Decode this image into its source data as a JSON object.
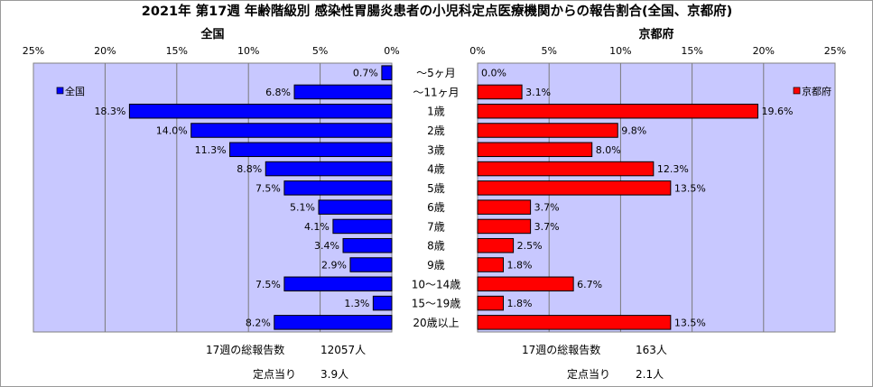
{
  "chart_data": {
    "type": "bar",
    "title": "2021年 第17週 年齢階級別 感染性胃腸炎患者の小児科定点医療機関からの報告割合(全国、京都府)",
    "categories": [
      "～5ヶ月",
      "～11ヶ月",
      "1歳",
      "2歳",
      "3歳",
      "4歳",
      "5歳",
      "6歳",
      "7歳",
      "8歳",
      "9歳",
      "10～14歳",
      "15～19歳",
      "20歳以上"
    ],
    "xlim": [
      0,
      25
    ],
    "ticks": [
      0,
      5,
      10,
      15,
      20,
      25
    ],
    "tick_labels": [
      "0%",
      "5%",
      "10%",
      "15%",
      "20%",
      "25%"
    ],
    "grid": true,
    "series": [
      {
        "name": "全国",
        "panel_title": "全国",
        "color": "#0000ff",
        "legend_position": "top-left",
        "values": [
          0.7,
          6.8,
          18.3,
          14.0,
          11.3,
          8.8,
          7.5,
          5.1,
          4.1,
          3.4,
          2.9,
          7.5,
          1.3,
          8.2
        ],
        "labels": [
          "0.7%",
          "6.8%",
          "18.3%",
          "14.0%",
          "11.3%",
          "8.8%",
          "7.5%",
          "5.1%",
          "4.1%",
          "3.4%",
          "2.9%",
          "7.5%",
          "1.3%",
          "8.2%"
        ]
      },
      {
        "name": "京都府",
        "panel_title": "京都府",
        "color": "#ff0000",
        "legend_position": "top-right",
        "values": [
          0.0,
          3.1,
          19.6,
          9.8,
          8.0,
          12.3,
          13.5,
          3.7,
          3.7,
          2.5,
          1.8,
          6.7,
          1.8,
          13.5
        ],
        "labels": [
          "0.0%",
          "3.1%",
          "19.6%",
          "9.8%",
          "8.0%",
          "12.3%",
          "13.5%",
          "3.7%",
          "3.7%",
          "2.5%",
          "1.8%",
          "6.7%",
          "1.8%",
          "13.5%"
        ]
      }
    ]
  },
  "footer": {
    "national": {
      "total_label": "17週の総報告数",
      "total_value": "12057人",
      "per_site_label": "定点当り",
      "per_site_value": "3.9人"
    },
    "kyoto": {
      "total_label": "17週の総報告数",
      "total_value": "163人",
      "per_site_label": "定点当り",
      "per_site_value": "2.1人"
    }
  }
}
